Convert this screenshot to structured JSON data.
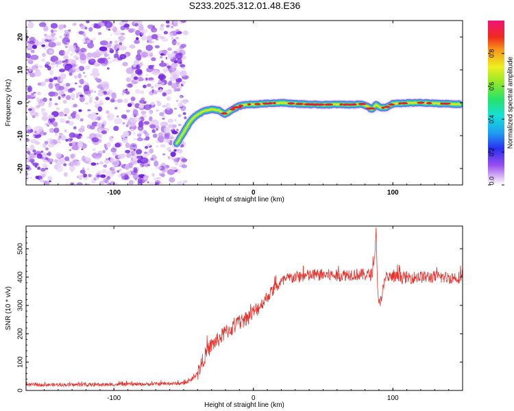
{
  "title": "S233.2025.312.01.48.E36",
  "colors": {
    "snr_line": "#e8302a",
    "trace_core": "#e81a3a",
    "speckle": "#8a2be2"
  },
  "colorbar": {
    "label": "Normalized spectral amplitude",
    "ticks": [
      "0.0",
      "0.2",
      "0.4",
      "0.6",
      "0.8"
    ],
    "tick_values": [
      0.0,
      0.2,
      0.4,
      0.6,
      0.8
    ],
    "range": [
      0,
      1
    ]
  },
  "chart_data": [
    {
      "type": "heatmap",
      "title": "S233.2025.312.01.48.E36",
      "xlabel": "Height of straight line (km)",
      "ylabel": "Frequency (Hz)",
      "xlim": [
        -163,
        150
      ],
      "ylim": [
        -25,
        25
      ],
      "x_ticks": [
        -100,
        0,
        100
      ],
      "y_ticks": [
        -20,
        -10,
        0,
        10,
        20
      ],
      "noise_region_x": [
        -163,
        -50
      ],
      "trace": {
        "x": [
          -55,
          -50,
          -45,
          -40,
          -35,
          -30,
          -25,
          -20,
          -15,
          -10,
          -5,
          0,
          10,
          20,
          30,
          40,
          50,
          60,
          70,
          78,
          82,
          85,
          88,
          91,
          95,
          100,
          110,
          120,
          130,
          140,
          148
        ],
        "y": [
          -12.5,
          -9,
          -5.5,
          -3.5,
          -2.5,
          -2,
          -2.3,
          -3.5,
          -2,
          -1,
          -0.5,
          -0.5,
          -0.2,
          0,
          -0.3,
          -0.5,
          -0.6,
          -0.5,
          -0.6,
          -0.4,
          -1.2,
          -2,
          -0.6,
          -1.5,
          -1.5,
          -0.3,
          -0.1,
          0,
          -0.2,
          -0.3,
          -0.5
        ]
      }
    },
    {
      "type": "line",
      "xlabel": "Height of straight line (km)",
      "ylabel": "SNR (10 * v/v)",
      "xlim": [
        -163,
        150
      ],
      "ylim": [
        0,
        580
      ],
      "x_ticks": [
        -100,
        0,
        100
      ],
      "y_ticks": [
        0,
        100,
        200,
        300,
        400,
        500
      ],
      "series": [
        {
          "name": "SNR",
          "x": [
            -163,
            -120,
            -80,
            -50,
            -45,
            -40,
            -35,
            -30,
            -25,
            -20,
            -15,
            -10,
            -5,
            0,
            5,
            10,
            15,
            20,
            25,
            30,
            40,
            50,
            60,
            70,
            80,
            85,
            87,
            88,
            89,
            90,
            95,
            100,
            110,
            120,
            130,
            140,
            150
          ],
          "y": [
            20,
            20,
            22,
            25,
            35,
            60,
            120,
            160,
            180,
            205,
            220,
            240,
            255,
            275,
            300,
            330,
            360,
            380,
            395,
            400,
            405,
            408,
            405,
            410,
            408,
            410,
            470,
            575,
            360,
            300,
            395,
            400,
            398,
            400,
            400,
            398,
            400
          ]
        }
      ]
    }
  ]
}
